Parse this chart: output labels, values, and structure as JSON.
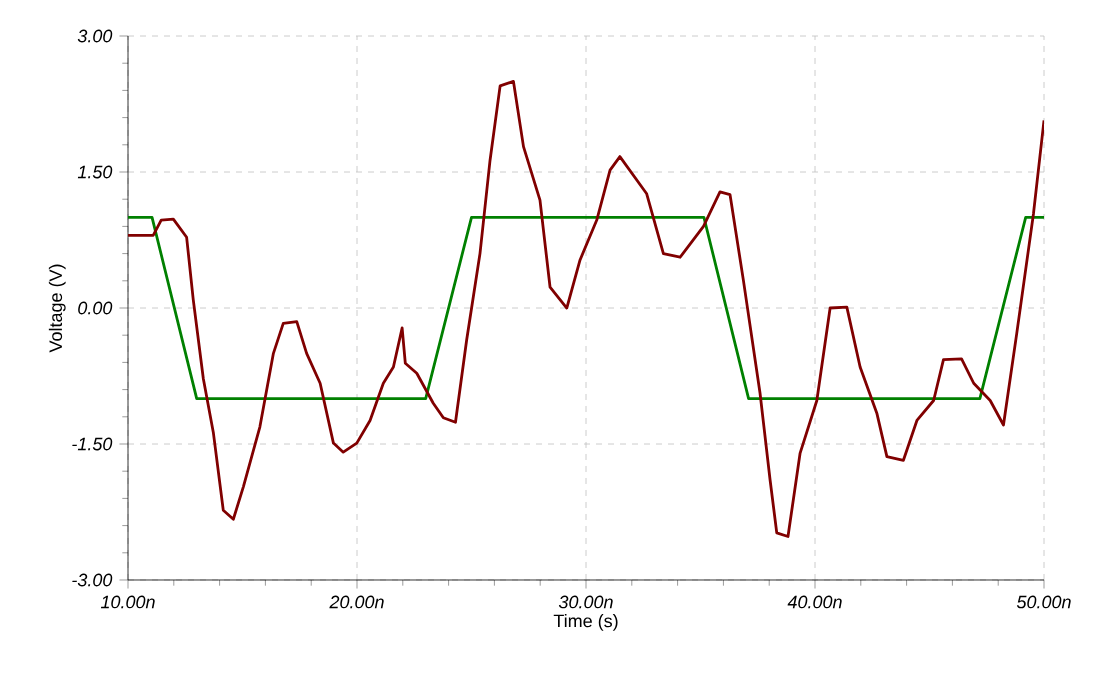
{
  "chart_data": {
    "type": "line",
    "xlabel": "Time (s)",
    "ylabel": "Voltage (V)",
    "xlim": [
      10,
      50
    ],
    "ylim": [
      -3,
      3
    ],
    "xticks": [
      {
        "value": 10,
        "label": "10.00n"
      },
      {
        "value": 20,
        "label": "20.00n"
      },
      {
        "value": 30,
        "label": "30.00n"
      },
      {
        "value": 40,
        "label": "40.00n"
      },
      {
        "value": 50,
        "label": "50.00n"
      }
    ],
    "yticks": [
      {
        "value": -3,
        "label": "-3.00"
      },
      {
        "value": -1.5,
        "label": "-1.50"
      },
      {
        "value": 0,
        "label": "0.00"
      },
      {
        "value": 1.5,
        "label": "1.50"
      },
      {
        "value": 3,
        "label": "3.00"
      }
    ],
    "grid": true,
    "series": [
      {
        "color": "#008000",
        "x": [
          10,
          11.05,
          13.0,
          23.0,
          25.0,
          35.15,
          37.1,
          47.2,
          49.2,
          50
        ],
        "values": [
          1,
          1,
          -1,
          -1,
          1,
          1,
          -1,
          -1,
          1,
          1
        ]
      },
      {
        "color": "#800000",
        "x": [
          10,
          11.1,
          11.45,
          11.98,
          12.56,
          12.85,
          13.29,
          13.73,
          14.16,
          14.6,
          15.04,
          15.76,
          16.35,
          16.78,
          17.37,
          17.8,
          18.39,
          18.97,
          19.4,
          19.99,
          20.57,
          21.15,
          21.59,
          21.97,
          22.11,
          22.61,
          23.33,
          23.77,
          24.3,
          24.79,
          25.37,
          25.81,
          26.25,
          26.83,
          27.27,
          27.99,
          28.43,
          29.16,
          29.74,
          30.47,
          31.05,
          31.48,
          32.65,
          33.38,
          34.11,
          35.13,
          35.85,
          36.29,
          36.87,
          37.6,
          38.04,
          38.33,
          38.82,
          39.35,
          40.08,
          40.66,
          41.39,
          41.97,
          42.7,
          43.14,
          43.86,
          44.45,
          45.18,
          45.61,
          46.4,
          46.93,
          47.65,
          48.23,
          48.81,
          49.54,
          50
        ],
        "values": [
          0.8,
          0.8,
          0.97,
          0.98,
          0.78,
          0.09,
          -0.78,
          -1.38,
          -2.23,
          -2.33,
          -1.97,
          -1.31,
          -0.5,
          -0.17,
          -0.15,
          -0.5,
          -0.83,
          -1.49,
          -1.59,
          -1.49,
          -1.24,
          -0.83,
          -0.65,
          -0.22,
          -0.61,
          -0.72,
          -1.05,
          -1.21,
          -1.26,
          -0.35,
          0.6,
          1.63,
          2.45,
          2.5,
          1.78,
          1.19,
          0.23,
          0.0,
          0.53,
          0.97,
          1.52,
          1.67,
          1.26,
          0.6,
          0.56,
          0.9,
          1.28,
          1.25,
          0.31,
          -0.94,
          -1.9,
          -2.48,
          -2.52,
          -1.6,
          -1.02,
          0.0,
          0.01,
          -0.65,
          -1.16,
          -1.64,
          -1.68,
          -1.24,
          -1.02,
          -0.57,
          -0.56,
          -0.83,
          -1.02,
          -1.29,
          -0.28,
          1.04,
          2.07
        ]
      }
    ]
  }
}
